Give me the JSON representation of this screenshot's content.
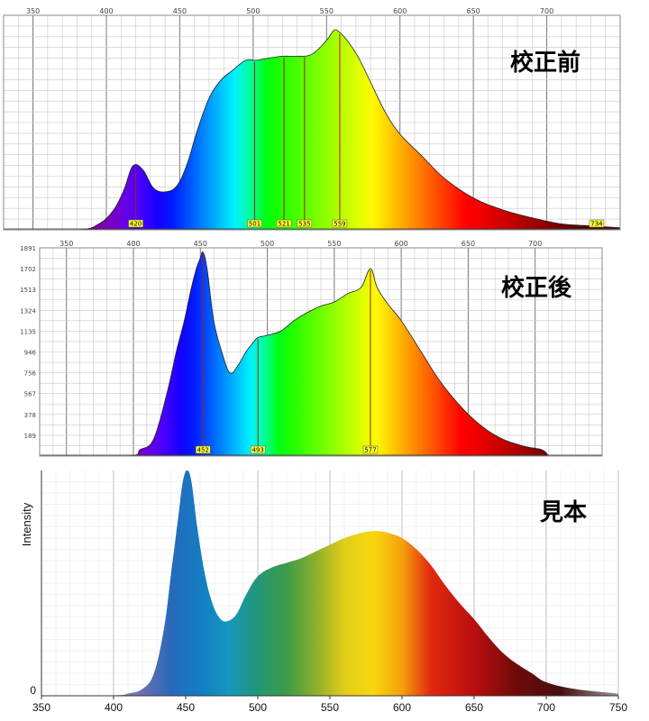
{
  "chart_data": [
    {
      "type": "area",
      "title": "校正前",
      "xlim": [
        330,
        750
      ],
      "x_ticks": [
        350,
        400,
        450,
        500,
        550,
        600,
        650,
        700
      ],
      "peak_labels": [
        420,
        501,
        521,
        535,
        559,
        734
      ],
      "grid": true,
      "x": [
        330,
        380,
        395,
        405,
        412,
        418,
        425,
        432,
        440,
        448,
        455,
        462,
        470,
        478,
        486,
        495,
        502,
        510,
        520,
        530,
        540,
        550,
        555,
        559,
        565,
        572,
        580,
        590,
        600,
        615,
        630,
        650,
        670,
        690,
        710,
        730,
        750
      ],
      "y": [
        0.0,
        0.0,
        0.03,
        0.1,
        0.2,
        0.32,
        0.3,
        0.21,
        0.19,
        0.22,
        0.33,
        0.5,
        0.66,
        0.75,
        0.8,
        0.85,
        0.85,
        0.86,
        0.87,
        0.87,
        0.88,
        0.95,
        1.0,
        0.99,
        0.94,
        0.86,
        0.74,
        0.59,
        0.48,
        0.37,
        0.26,
        0.16,
        0.1,
        0.06,
        0.03,
        0.02,
        0.01
      ]
    },
    {
      "type": "area",
      "title": "校正後",
      "xlim": [
        330,
        750
      ],
      "x_ticks": [
        350,
        400,
        450,
        500,
        550,
        600,
        650,
        700
      ],
      "y_ticks": [
        189,
        378,
        567,
        756,
        946,
        1135,
        1324,
        1513,
        1702,
        1891
      ],
      "ylim": [
        0,
        1891
      ],
      "peak_labels": [
        452,
        493,
        577
      ],
      "grid": true,
      "x": [
        330,
        395,
        405,
        415,
        425,
        432,
        438,
        443,
        447,
        450,
        452,
        455,
        460,
        466,
        472,
        478,
        484,
        490,
        493,
        500,
        510,
        520,
        530,
        540,
        550,
        560,
        570,
        577,
        582,
        590,
        600,
        615,
        630,
        650,
        670,
        690,
        705,
        710
      ],
      "y": [
        0,
        0,
        57,
        151,
        567,
        945,
        1229,
        1514,
        1702,
        1801,
        1850,
        1702,
        1230,
        945,
        756,
        822,
        945,
        1040,
        1077,
        1097,
        1135,
        1230,
        1305,
        1362,
        1400,
        1475,
        1532,
        1702,
        1530,
        1380,
        1230,
        945,
        662,
        380,
        189,
        94,
        57,
        0
      ]
    },
    {
      "type": "area",
      "title": "見本",
      "ylabel": "Intensity",
      "xlim": [
        350,
        750
      ],
      "x_ticks": [
        350,
        400,
        450,
        500,
        550,
        600,
        650,
        700,
        750
      ],
      "y_ticks": [
        0
      ],
      "grid": true,
      "x": [
        350,
        400,
        410,
        420,
        428,
        435,
        440,
        445,
        448,
        451,
        454,
        458,
        463,
        468,
        473,
        478,
        485,
        492,
        500,
        510,
        520,
        530,
        540,
        550,
        560,
        570,
        578,
        585,
        592,
        600,
        610,
        620,
        630,
        640,
        650,
        660,
        670,
        680,
        690,
        700,
        720,
        750
      ],
      "y": [
        0.0,
        0.002,
        0.01,
        0.03,
        0.1,
        0.3,
        0.55,
        0.8,
        0.95,
        1.0,
        0.95,
        0.75,
        0.55,
        0.42,
        0.35,
        0.33,
        0.36,
        0.45,
        0.53,
        0.57,
        0.59,
        0.61,
        0.64,
        0.67,
        0.7,
        0.72,
        0.73,
        0.73,
        0.72,
        0.7,
        0.65,
        0.58,
        0.49,
        0.41,
        0.34,
        0.26,
        0.19,
        0.14,
        0.1,
        0.06,
        0.03,
        0.01
      ]
    }
  ]
}
